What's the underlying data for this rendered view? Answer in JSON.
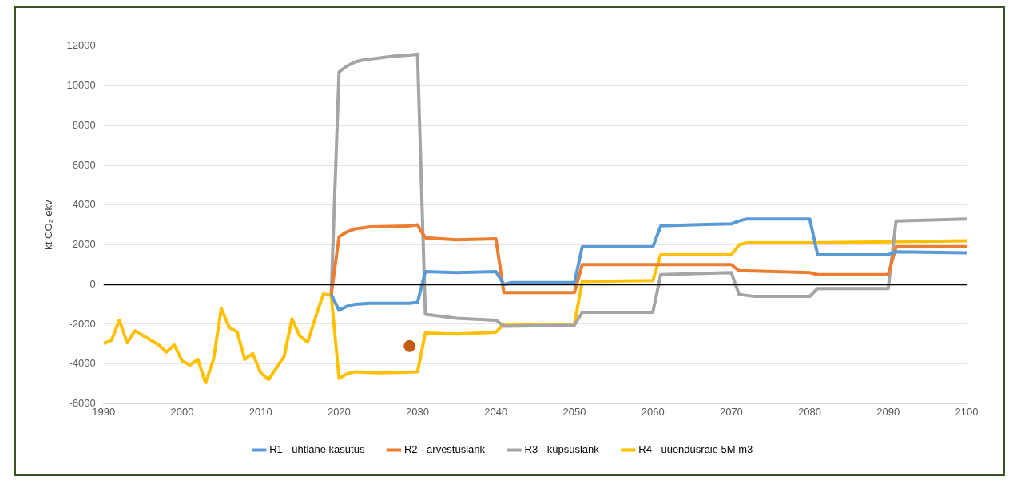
{
  "chart_data": {
    "type": "line",
    "ylabel": "kt CO₂ ekv",
    "xlim": [
      1990,
      2100
    ],
    "xticks": [
      1990,
      2000,
      2010,
      2020,
      2030,
      2040,
      2050,
      2060,
      2070,
      2080,
      2090,
      2100
    ],
    "ylim": [
      -6000,
      12000
    ],
    "yticks": [
      -6000,
      -4000,
      -2000,
      0,
      2000,
      4000,
      6000,
      8000,
      10000,
      12000
    ],
    "grid": "y",
    "legend": "bottom",
    "line_style": "solid",
    "ref_lines": [
      {
        "axis": "y",
        "value": 0,
        "color": "#000000"
      }
    ],
    "series": [
      {
        "name": "R1 - ühtlane kasutus",
        "color": "#5b9bd5",
        "x": [
          2019,
          2020,
          2021,
          2022,
          2024,
          2026,
          2029,
          2030,
          2031,
          2035,
          2040,
          2041,
          2042,
          2050,
          2051,
          2060,
          2061,
          2065,
          2070,
          2071,
          2072,
          2080,
          2081,
          2090,
          2091,
          2100
        ],
        "values": [
          -500,
          -1300,
          -1100,
          -1000,
          -950,
          -950,
          -950,
          -900,
          650,
          600,
          650,
          0,
          100,
          100,
          1900,
          1900,
          2950,
          3000,
          3050,
          3200,
          3300,
          3300,
          1500,
          1500,
          1650,
          1600
        ]
      },
      {
        "name": "R2 - arvestuslank",
        "color": "#ed7d31",
        "x": [
          2019,
          2020,
          2021,
          2022,
          2024,
          2029,
          2030,
          2031,
          2035,
          2040,
          2041,
          2050,
          2051,
          2060,
          2061,
          2070,
          2071,
          2080,
          2081,
          2090,
          2091,
          2100
        ],
        "values": [
          -500,
          2400,
          2650,
          2800,
          2900,
          2950,
          3000,
          2350,
          2250,
          2300,
          -400,
          -400,
          1000,
          1000,
          1000,
          1000,
          700,
          600,
          500,
          500,
          1900,
          1900
        ]
      },
      {
        "name": "R3 - küpsuslank",
        "color": "#a5a5a5",
        "x": [
          2019,
          2020,
          2021,
          2022,
          2023,
          2025,
          2027,
          2029,
          2030,
          2031,
          2035,
          2040,
          2041,
          2050,
          2051,
          2060,
          2061,
          2070,
          2071,
          2073,
          2080,
          2081,
          2090,
          2091,
          2100
        ],
        "values": [
          -500,
          10700,
          11000,
          11200,
          11300,
          11400,
          11500,
          11550,
          11600,
          -1500,
          -1700,
          -1800,
          -2100,
          -2050,
          -1400,
          -1400,
          500,
          600,
          -500,
          -600,
          -600,
          -200,
          -200,
          3200,
          3300
        ]
      },
      {
        "name": "R4 - uuendusraie 5M m3",
        "color": "#ffc000",
        "x": [
          1990,
          1991,
          1992,
          1993,
          1994,
          1995,
          1996,
          1997,
          1998,
          1999,
          2000,
          2001,
          2002,
          2003,
          2004,
          2005,
          2006,
          2007,
          2008,
          2009,
          2010,
          2011,
          2012,
          2013,
          2014,
          2015,
          2016,
          2017,
          2018,
          2019,
          2020,
          2021,
          2022,
          2025,
          2030,
          2031,
          2035,
          2040,
          2041,
          2050,
          2051,
          2060,
          2061,
          2070,
          2071,
          2072,
          2080,
          2100
        ],
        "values": [
          -2970,
          -2810,
          -1800,
          -2930,
          -2330,
          -2570,
          -2800,
          -3040,
          -3400,
          -3040,
          -3840,
          -4060,
          -3770,
          -4950,
          -3770,
          -1210,
          -2160,
          -2380,
          -3770,
          -3480,
          -4430,
          -4790,
          -4210,
          -3630,
          -1730,
          -2600,
          -2900,
          -1650,
          -480,
          -550,
          -4730,
          -4500,
          -4400,
          -4450,
          -4400,
          -2450,
          -2500,
          -2400,
          -2000,
          -2000,
          150,
          200,
          1500,
          1500,
          2000,
          2100,
          2100,
          2200
        ]
      },
      {
        "type": "scatter",
        "marker": "circle",
        "color": "#c55a11",
        "x": [
          2029
        ],
        "values": [
          -3100
        ]
      }
    ]
  }
}
